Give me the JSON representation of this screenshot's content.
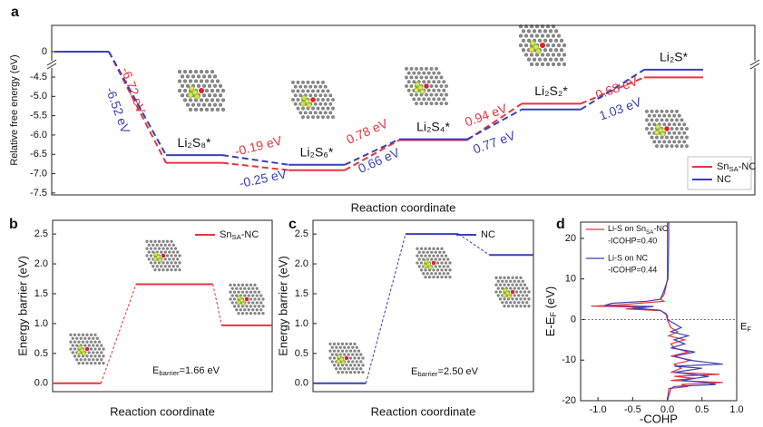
{
  "chart_data": [
    {
      "type": "energy_profile",
      "panel_label": "a",
      "categories": [
        null,
        "Li₂S₈*",
        "Li₂S₆*",
        "Li₂S₄*",
        "Li₂S₂*",
        "Li₂S*"
      ],
      "series": [
        {
          "name": "SnSA-NC",
          "color": "#e8343f",
          "values": [
            0,
            -6.72,
            -6.91,
            -6.13,
            -5.19,
            -4.51
          ],
          "step_labels": [
            "-6.72 eV",
            "-0.19 eV",
            "0.78 eV",
            "0.94 eV",
            "0.68 eV"
          ]
        },
        {
          "name": "NC",
          "color": "#3b3fb8",
          "values": [
            0,
            -6.52,
            -6.77,
            -6.11,
            -5.34,
            -4.31
          ],
          "step_labels": [
            "-6.52 eV",
            "-0.25 eV",
            "0.66 eV",
            "0.77 eV",
            "1.03 eV"
          ]
        }
      ],
      "ylim": [
        -7.55,
        0.68
      ],
      "yticks": [
        0,
        -4.5,
        {
          "value": -5,
          "label": "-5.0"
        },
        -5.5,
        {
          "value": -6,
          "label": "-6.0"
        },
        -6.5,
        {
          "value": -7,
          "label": "-7.0"
        },
        -7.5
      ],
      "y_break": true,
      "xlabel": "Reaction coordinate",
      "ylabel": "Relative free energy (eV)",
      "legend": "lower right"
    },
    {
      "type": "energy_profile",
      "panel_label": "b",
      "series": [
        {
          "name": "SnSA-NC",
          "color": "#e8343f",
          "values": [
            0,
            1.66,
            0.97
          ]
        }
      ],
      "ylim": [
        -0.14,
        2.73
      ],
      "yticks": [
        {
          "value": 0,
          "label": "0.0"
        },
        0.5,
        {
          "value": 1,
          "label": "1.0"
        },
        1.5,
        {
          "value": 2,
          "label": "2.0"
        },
        2.5
      ],
      "xlabel": "Reaction coordinate",
      "ylabel": "Energy barrier (eV)",
      "annotation": "Ebarrier=1.66 eV",
      "legend": "upper right"
    },
    {
      "type": "energy_profile",
      "panel_label": "c",
      "series": [
        {
          "name": "NC",
          "color": "#3b3fb8",
          "values": [
            0,
            2.5,
            2.15
          ]
        }
      ],
      "ylim": [
        -0.14,
        2.73
      ],
      "yticks": [
        {
          "value": 0,
          "label": "0.0"
        },
        0.5,
        {
          "value": 1,
          "label": "1.0"
        },
        1.5,
        {
          "value": 2,
          "label": "2.0"
        },
        2.5
      ],
      "xlabel": "Reaction coordinate",
      "ylabel": "Energy barrier (eV)",
      "annotation": "Ebarrier=2.50 eV",
      "legend": "upper right"
    },
    {
      "type": "line",
      "panel_label": "d",
      "series": [
        {
          "name": "Li-S on SnSA-NC",
          "color": "#e8343f",
          "annotation": "-ICOHP=0.40",
          "y": [
            24,
            10,
            8,
            6,
            5,
            4.5,
            4,
            3.6,
            3.3,
            3.0,
            2.6,
            2.2,
            1.5,
            0,
            -2,
            -3,
            -4,
            -5,
            -6,
            -7,
            -8,
            -9,
            -10,
            -11,
            -12,
            -13,
            -13.5,
            -14,
            -14.5,
            -15,
            -15.5,
            -16,
            -16.5,
            -17,
            -20
          ],
          "x": [
            0,
            0,
            -0.02,
            -0.05,
            -0.1,
            -0.05,
            -0.4,
            -0.7,
            -1.1,
            -0.3,
            -0.6,
            -0.1,
            -0.02,
            0,
            0.05,
            0.15,
            0.02,
            0.25,
            0.05,
            0.1,
            0.3,
            0.05,
            0.35,
            0.1,
            0.2,
            0.05,
            0.75,
            0.1,
            0.4,
            0.05,
            0.8,
            0.2,
            0.3,
            0.02,
            0
          ]
        },
        {
          "name": "Li-S on NC",
          "color": "#3b3fb8",
          "annotation": "-ICOHP=0.44",
          "y": [
            24,
            20,
            10,
            7,
            5,
            4.5,
            4,
            3.5,
            3.2,
            2.8,
            2.3,
            1,
            0,
            -1,
            -2,
            -3,
            -4,
            -5,
            -6,
            -7,
            -8,
            -9,
            -10,
            -11,
            -11.5,
            -12,
            -13,
            -14,
            -15,
            -15.5,
            -16,
            -16.5,
            -17,
            -20
          ],
          "x": [
            0.02,
            0.02,
            0.01,
            -0.05,
            -0.1,
            -0.3,
            -0.8,
            -0.9,
            -0.2,
            -0.5,
            -0.1,
            0,
            0,
            0.1,
            0.2,
            0.05,
            0.3,
            0.1,
            0.25,
            0.05,
            0.4,
            0.1,
            0.3,
            0.8,
            0.1,
            0.5,
            0.1,
            0.6,
            0.2,
            0.55,
            0.7,
            0.1,
            0.05,
            0
          ]
        }
      ],
      "xlim": [
        -1.25,
        1
      ],
      "xticks": [
        {
          "value": -1,
          "label": "-1.0"
        },
        -0.5,
        {
          "value": 0,
          "label": "0.0"
        },
        0.5,
        {
          "value": 1,
          "label": "1.0"
        }
      ],
      "ylim": [
        -20,
        24
      ],
      "yticks": [
        20,
        10,
        0,
        -10,
        -20
      ],
      "fermi_level": 0,
      "fermi_label": "EF",
      "xlabel": "-COHP",
      "ylabel": "E-EF (eV)",
      "legend": "upper left"
    }
  ]
}
